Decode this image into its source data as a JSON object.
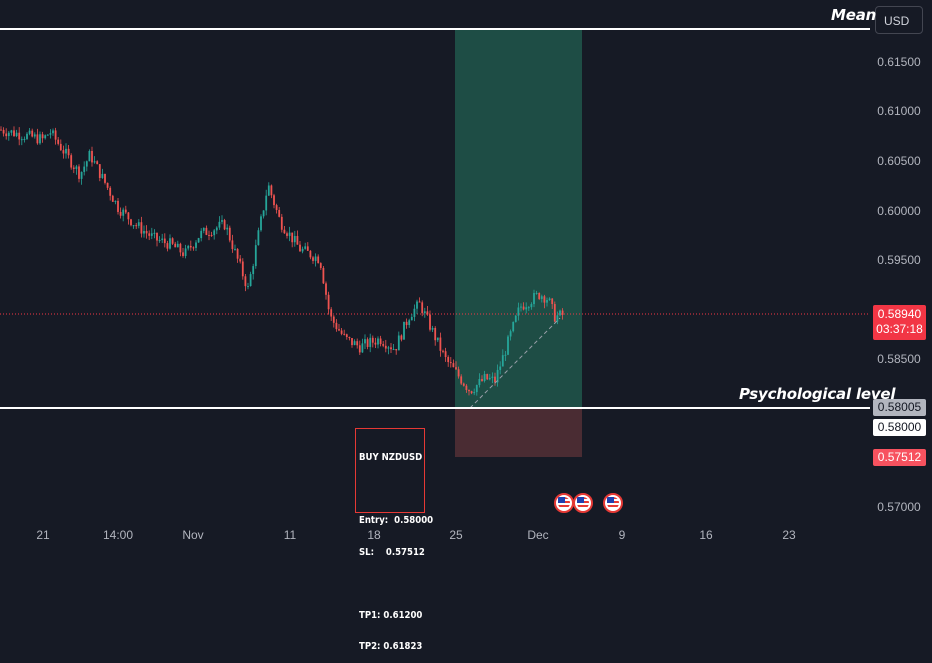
{
  "currency_label": "USD",
  "annotations": {
    "mean_label": "Mean",
    "psych_label": "Psychological level"
  },
  "price_tags": {
    "current_price": "0.58940",
    "countdown": "03:37:18",
    "psych_price": "0.58005",
    "entry_price": "0.58000",
    "sl_price": "0.57512"
  },
  "trade_note": {
    "lines": [
      "BUY NZDUSD",
      "",
      "Entry:  0.58000",
      "SL:    0.57512",
      "",
      "TP1: 0.61200",
      "TP2: 0.61823"
    ]
  },
  "colors": {
    "background": "#161a25",
    "up": "#26a69a",
    "down": "#ef5350",
    "profit_zone": "#1e4d45",
    "loss_zone": "#4a2c33",
    "current_price_tag": "#f23645",
    "sl_tag": "#f7525f"
  },
  "icons": [
    "us-flag-icon",
    "us-flag-icon",
    "us-flag-icon"
  ],
  "chart_data": {
    "type": "candlestick",
    "symbol": "NZDUSD",
    "y_ticks": [
      "0.61500",
      "0.61000",
      "0.60500",
      "0.60000",
      "0.59500",
      "0.58500",
      "0.57000"
    ],
    "x_ticks": [
      "21",
      "14:00",
      "Nov",
      "11",
      "18",
      "25",
      "Dec",
      "9",
      "16",
      "23"
    ],
    "ylim": [
      0.5685,
      0.6186
    ],
    "grid": false,
    "horizontal_lines": [
      {
        "label": "Mean",
        "price": 0.6181
      },
      {
        "label": "Psychological level",
        "price": 0.58005
      }
    ],
    "current_price": 0.5894,
    "position": {
      "side": "long",
      "entry": 0.58,
      "stop_loss": 0.57512,
      "target": 0.6181
    },
    "close_path": [
      [
        "Oct 17",
        0.608
      ],
      [
        "Oct 21",
        0.607
      ],
      [
        "Oct 22",
        0.6078
      ],
      [
        "Oct 24",
        0.6035
      ],
      [
        "Oct 25",
        0.6055
      ],
      [
        "Oct 28",
        0.6002
      ],
      [
        "Oct 29",
        0.5985
      ],
      [
        "Oct 30",
        0.597
      ],
      [
        "Oct 31",
        0.5965
      ],
      [
        "Nov 1",
        0.5955
      ],
      [
        "Nov 4",
        0.5975
      ],
      [
        "Nov 5",
        0.5985
      ],
      [
        "Nov 6",
        0.592
      ],
      [
        "Nov 7",
        0.6025
      ],
      [
        "Nov 8",
        0.5988
      ],
      [
        "Nov 11",
        0.596
      ],
      [
        "Nov 12",
        0.595
      ],
      [
        "Nov 13",
        0.5892
      ],
      [
        "Nov 14",
        0.587
      ],
      [
        "Nov 15",
        0.5862
      ],
      [
        "Nov 18",
        0.587
      ],
      [
        "Nov 19",
        0.586
      ],
      [
        "Nov 20",
        0.5895
      ],
      [
        "Nov 21",
        0.5905
      ],
      [
        "Nov 22",
        0.585
      ],
      [
        "Nov 25",
        0.5818
      ],
      [
        "Nov 26",
        0.583
      ],
      [
        "Nov 27",
        0.5828
      ],
      [
        "Nov 28",
        0.5902
      ],
      [
        "Nov 29",
        0.5915
      ],
      [
        "Dec 2",
        0.591
      ],
      [
        "Dec 3",
        0.5892
      ],
      [
        "Dec 4",
        0.5894
      ]
    ]
  }
}
